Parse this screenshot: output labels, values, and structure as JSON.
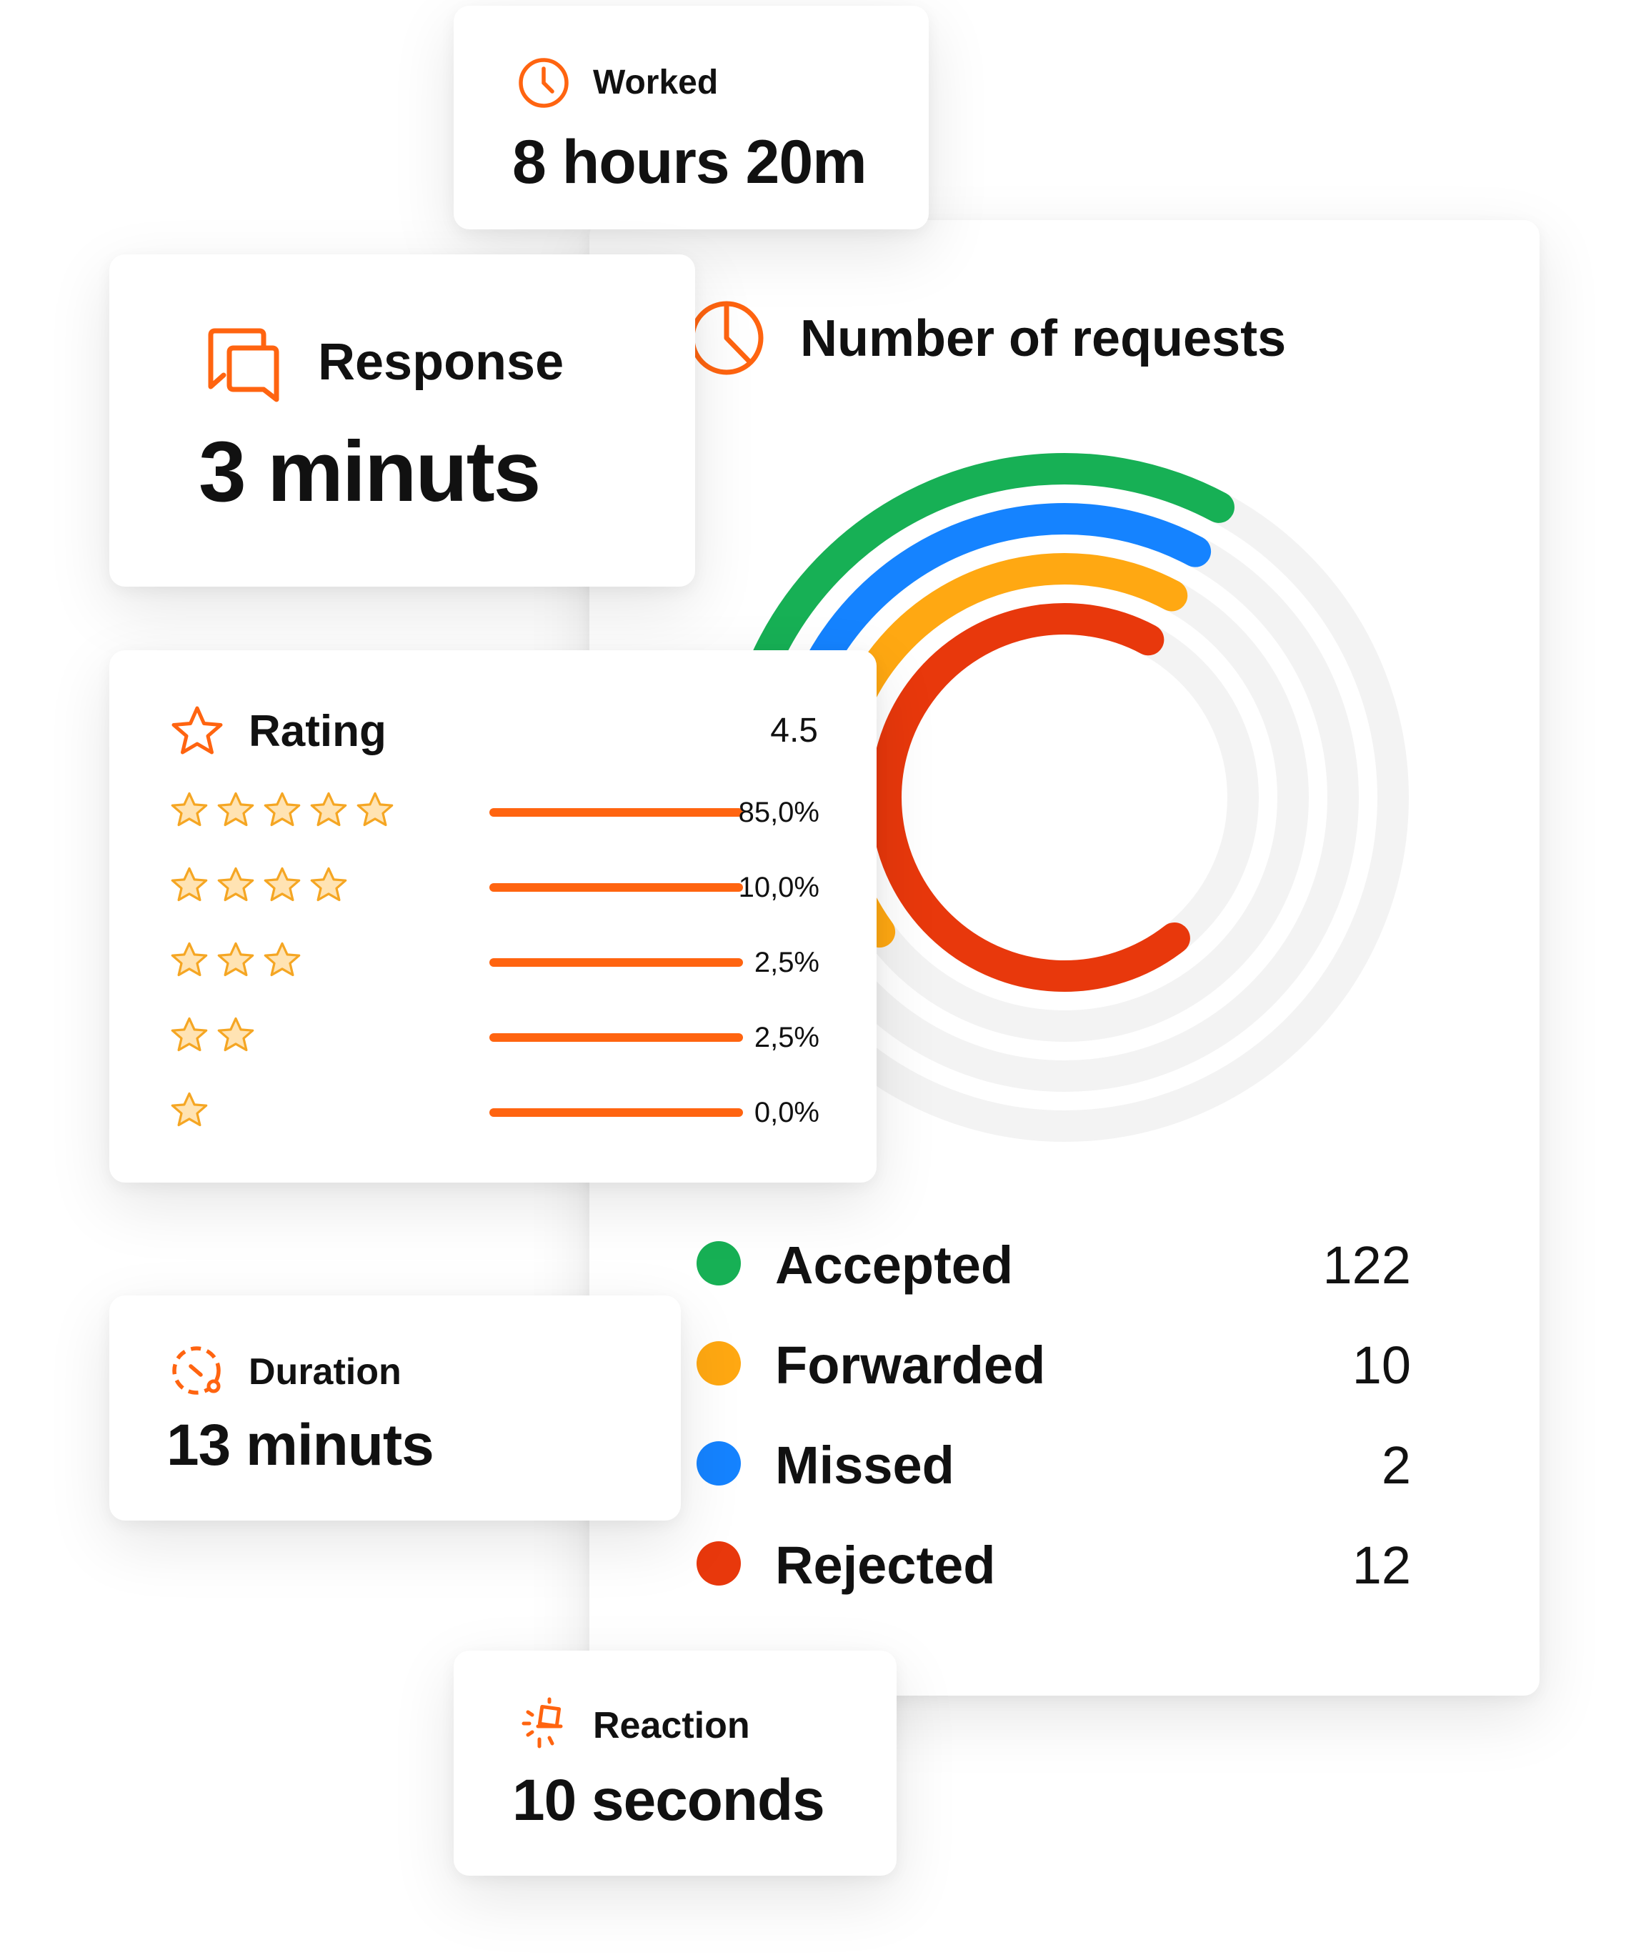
{
  "colors": {
    "accent_orange": "#ff6410",
    "accepted": "#17b055",
    "forwarded": "#ffa812",
    "missed": "#1583ff",
    "rejected": "#e8380c",
    "track": "#f3f3f3",
    "star_fill": "#ffe3b3",
    "star_stroke": "#f5a623"
  },
  "worked": {
    "icon": "clock-icon",
    "label": "Worked",
    "value": "8 hours 20m"
  },
  "response": {
    "icon": "chat-bubbles-icon",
    "label": "Response",
    "value": "3 minuts"
  },
  "requests": {
    "icon": "pie-chart-icon",
    "title": "Number of requests",
    "items": [
      {
        "name": "Accepted",
        "count": "122",
        "color": "#17b055"
      },
      {
        "name": "Forwarded",
        "count": "10",
        "color": "#ffa812"
      },
      {
        "name": "Missed",
        "count": "2",
        "color": "#1583ff"
      },
      {
        "name": "Rejected",
        "count": "12",
        "color": "#e8380c"
      }
    ]
  },
  "chart_data": {
    "type": "radial-bar",
    "categories": [
      "Accepted",
      "Forwarded",
      "Missed",
      "Rejected"
    ],
    "values": [
      122,
      10,
      2,
      12
    ]
  },
  "rating": {
    "icon": "star-icon",
    "label": "Rating",
    "score": "4.5",
    "rows": [
      {
        "stars": 5,
        "percent": "85,0%"
      },
      {
        "stars": 4,
        "percent": "10,0%"
      },
      {
        "stars": 3,
        "percent": "2,5%"
      },
      {
        "stars": 2,
        "percent": "2,5%"
      },
      {
        "stars": 1,
        "percent": "0,0%"
      }
    ]
  },
  "duration": {
    "icon": "timer-icon",
    "label": "Duration",
    "value": "13 minuts"
  },
  "reaction": {
    "icon": "bell-ring-icon",
    "label": "Reaction",
    "value": "10 seconds"
  }
}
